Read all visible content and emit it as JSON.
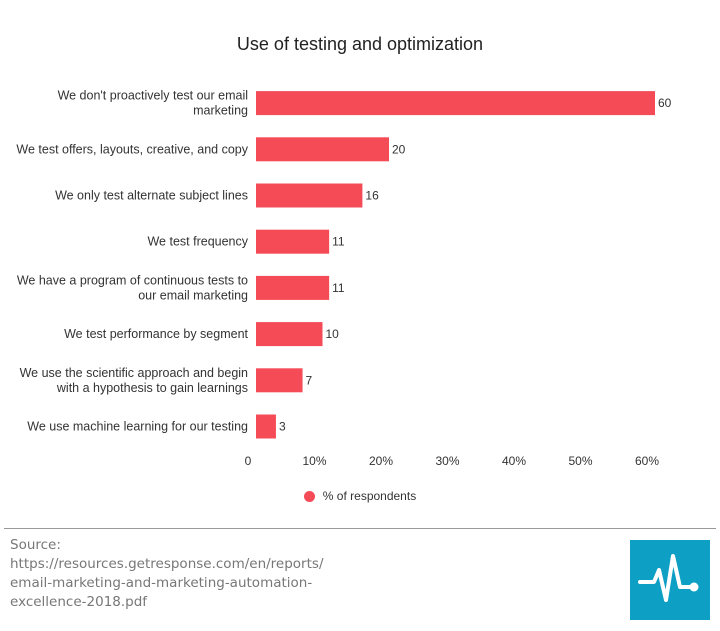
{
  "chart_data": {
    "type": "bar",
    "orientation": "horizontal",
    "title": "Use of testing and optimization",
    "categories": [
      [
        "We don't proactively test our email",
        "marketing"
      ],
      [
        "We test offers, layouts, creative, and copy"
      ],
      [
        "We only test alternate subject lines"
      ],
      [
        "We test frequency"
      ],
      [
        "We have a program of continuous tests to",
        "our email marketing"
      ],
      [
        "We test performance by segment"
      ],
      [
        "We use the scientific approach and begin",
        "with a hypothesis to gain learnings"
      ],
      [
        "We use machine learning for our testing"
      ]
    ],
    "series": [
      {
        "name": "% of respondents",
        "values": [
          60,
          20,
          16,
          11,
          11,
          10,
          7,
          3
        ]
      }
    ],
    "xlim": [
      0,
      60
    ],
    "xticks": [
      "0",
      "10%",
      "20%",
      "30%",
      "40%",
      "50%",
      "60%"
    ],
    "xtick_values": [
      0,
      10,
      20,
      30,
      40,
      50,
      60
    ],
    "grid": false,
    "legend_position": "bottom",
    "bar_color": "#f54b57"
  },
  "source": {
    "label": "Source:",
    "lines": [
      "https://resources.getresponse.com/en/reports/",
      "email-marketing-and-marketing-automation-",
      "excellence-2018.pdf"
    ]
  },
  "logo": {
    "icon": "pulse-line-icon",
    "color": "#0e9fc4"
  }
}
